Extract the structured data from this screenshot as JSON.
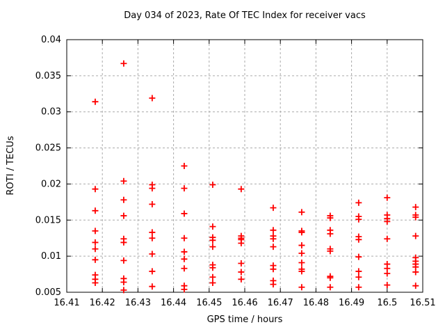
{
  "page_title": "Day 034 of 2023, Rate Of TEC Index for receiver vacs",
  "chart_data": {
    "type": "scatter",
    "title": "Day 034 of 2023, Rate Of TEC Index for receiver vacs",
    "xlabel": "GPS time / hours",
    "ylabel": "ROTI / TECUs",
    "xlim": [
      16.41,
      16.51
    ],
    "ylim": [
      0.005,
      0.04
    ],
    "x_ticks": [
      16.41,
      16.42,
      16.43,
      16.44,
      16.45,
      16.46,
      16.47,
      16.48,
      16.49,
      16.5,
      16.51
    ],
    "x_tick_labels": [
      "16.41",
      "16.42",
      "16.43",
      "16.44",
      "16.45",
      "16.46",
      "16.47",
      "16.48",
      "16.49",
      "16.5",
      "16.51"
    ],
    "y_ticks": [
      0.005,
      0.01,
      0.015,
      0.02,
      0.025,
      0.03,
      0.035,
      0.04
    ],
    "y_tick_labels": [
      "0.005",
      "0.01",
      "0.015",
      "0.02",
      "0.025",
      "0.03",
      "0.035",
      "0.04"
    ],
    "grid": true,
    "legend": "none",
    "grid_color": "#aaaaaa",
    "axis_color": "#000000",
    "marker": {
      "shape": "plus",
      "color": "#ff0000",
      "size": 9,
      "stroke": 1.8
    },
    "series": [
      {
        "name": "ROTI",
        "points": [
          [
            16.418,
            0.0314
          ],
          [
            16.418,
            0.0193
          ],
          [
            16.418,
            0.0163
          ],
          [
            16.418,
            0.0135
          ],
          [
            16.418,
            0.0119
          ],
          [
            16.418,
            0.011
          ],
          [
            16.418,
            0.0095
          ],
          [
            16.418,
            0.0074
          ],
          [
            16.418,
            0.0068
          ],
          [
            16.418,
            0.0063
          ],
          [
            16.426,
            0.0367
          ],
          [
            16.426,
            0.0204
          ],
          [
            16.426,
            0.0178
          ],
          [
            16.426,
            0.0156
          ],
          [
            16.426,
            0.0124
          ],
          [
            16.426,
            0.0119
          ],
          [
            16.426,
            0.0094
          ],
          [
            16.426,
            0.0069
          ],
          [
            16.426,
            0.0064
          ],
          [
            16.426,
            0.0053
          ],
          [
            16.434,
            0.0319
          ],
          [
            16.434,
            0.0199
          ],
          [
            16.434,
            0.0194
          ],
          [
            16.434,
            0.0172
          ],
          [
            16.434,
            0.0133
          ],
          [
            16.434,
            0.0125
          ],
          [
            16.434,
            0.0103
          ],
          [
            16.434,
            0.0079
          ],
          [
            16.434,
            0.0058
          ],
          [
            16.443,
            0.0225
          ],
          [
            16.443,
            0.0194
          ],
          [
            16.443,
            0.0159
          ],
          [
            16.443,
            0.0125
          ],
          [
            16.443,
            0.0106
          ],
          [
            16.443,
            0.0096
          ],
          [
            16.443,
            0.0083
          ],
          [
            16.443,
            0.0059
          ],
          [
            16.443,
            0.0054
          ],
          [
            16.451,
            0.0199
          ],
          [
            16.451,
            0.0141
          ],
          [
            16.451,
            0.0126
          ],
          [
            16.451,
            0.0122
          ],
          [
            16.451,
            0.0113
          ],
          [
            16.451,
            0.0088
          ],
          [
            16.451,
            0.0084
          ],
          [
            16.451,
            0.0071
          ],
          [
            16.451,
            0.0063
          ],
          [
            16.459,
            0.0193
          ],
          [
            16.459,
            0.0128
          ],
          [
            16.459,
            0.0125
          ],
          [
            16.459,
            0.0123
          ],
          [
            16.459,
            0.0118
          ],
          [
            16.459,
            0.009
          ],
          [
            16.459,
            0.0078
          ],
          [
            16.459,
            0.0068
          ],
          [
            16.468,
            0.0167
          ],
          [
            16.468,
            0.0136
          ],
          [
            16.468,
            0.0128
          ],
          [
            16.468,
            0.0124
          ],
          [
            16.468,
            0.0113
          ],
          [
            16.468,
            0.0087
          ],
          [
            16.468,
            0.0082
          ],
          [
            16.468,
            0.0066
          ],
          [
            16.468,
            0.0061
          ],
          [
            16.476,
            0.0161
          ],
          [
            16.476,
            0.0135
          ],
          [
            16.476,
            0.0133
          ],
          [
            16.476,
            0.0115
          ],
          [
            16.476,
            0.0104
          ],
          [
            16.476,
            0.0091
          ],
          [
            16.476,
            0.0082
          ],
          [
            16.476,
            0.0079
          ],
          [
            16.476,
            0.0057
          ],
          [
            16.484,
            0.0156
          ],
          [
            16.484,
            0.0153
          ],
          [
            16.484,
            0.0136
          ],
          [
            16.484,
            0.0131
          ],
          [
            16.484,
            0.011
          ],
          [
            16.484,
            0.0107
          ],
          [
            16.484,
            0.0072
          ],
          [
            16.484,
            0.007
          ],
          [
            16.484,
            0.0057
          ],
          [
            16.492,
            0.0174
          ],
          [
            16.492,
            0.0155
          ],
          [
            16.492,
            0.0151
          ],
          [
            16.492,
            0.0127
          ],
          [
            16.492,
            0.0123
          ],
          [
            16.492,
            0.0099
          ],
          [
            16.492,
            0.0079
          ],
          [
            16.492,
            0.0071
          ],
          [
            16.492,
            0.0057
          ],
          [
            16.5,
            0.0181
          ],
          [
            16.5,
            0.0157
          ],
          [
            16.5,
            0.0152
          ],
          [
            16.5,
            0.0148
          ],
          [
            16.5,
            0.0124
          ],
          [
            16.5,
            0.0089
          ],
          [
            16.5,
            0.0083
          ],
          [
            16.5,
            0.0076
          ],
          [
            16.5,
            0.006
          ],
          [
            16.508,
            0.0168
          ],
          [
            16.508,
            0.0157
          ],
          [
            16.508,
            0.0154
          ],
          [
            16.508,
            0.0128
          ],
          [
            16.508,
            0.0098
          ],
          [
            16.508,
            0.0093
          ],
          [
            16.508,
            0.0089
          ],
          [
            16.508,
            0.0085
          ],
          [
            16.508,
            0.0078
          ],
          [
            16.508,
            0.0059
          ]
        ]
      }
    ]
  }
}
